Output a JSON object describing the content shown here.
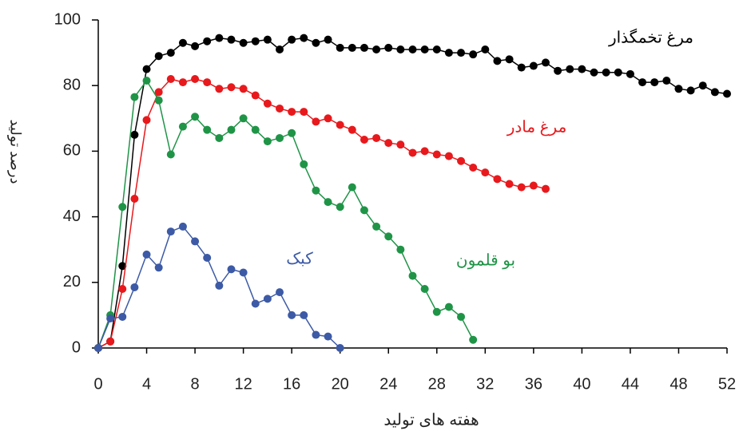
{
  "chart_data": {
    "type": "line",
    "xlabel": "هفته های تولید",
    "ylabel": "درصد تولید",
    "x": [
      0,
      1,
      2,
      3,
      4,
      5,
      6,
      7,
      8,
      9,
      10,
      11,
      12,
      13,
      14,
      15,
      16,
      17,
      18,
      19,
      20,
      21,
      22,
      23,
      24,
      25,
      26,
      27,
      28,
      29,
      30,
      31,
      32,
      33,
      34,
      35,
      36,
      37,
      38,
      39,
      40,
      41,
      42,
      43,
      44,
      45,
      46,
      47,
      48,
      49,
      50,
      51,
      52
    ],
    "xlim": [
      0,
      52
    ],
    "xticks": [
      0,
      4,
      8,
      12,
      16,
      20,
      24,
      28,
      32,
      36,
      40,
      44,
      48,
      52
    ],
    "ylim": [
      0,
      100
    ],
    "yticks": [
      0,
      20,
      40,
      60,
      80,
      100
    ],
    "series": [
      {
        "name": "مرغ تخمگذار",
        "color": "#000000",
        "values": [
          0,
          2,
          25,
          65,
          85,
          89,
          90,
          93,
          92,
          93.5,
          94.5,
          94,
          93,
          93.5,
          94,
          91,
          94,
          94.5,
          93,
          94,
          91.5,
          91.5,
          91.5,
          91,
          91.5,
          91,
          91,
          91,
          91,
          90,
          90,
          89.5,
          91,
          87.5,
          88,
          85.5,
          86,
          87,
          84.5,
          85,
          85,
          84,
          84,
          84,
          83.5,
          81,
          81,
          81.5,
          79,
          78.5,
          80,
          78,
          77.5
        ]
      },
      {
        "name": "مرغ مادر",
        "color": "#e8191c",
        "values": [
          0,
          2,
          18,
          45.5,
          69.5,
          78,
          82,
          81,
          82,
          81,
          79,
          79.5,
          79,
          77,
          74.5,
          73,
          72,
          72,
          69,
          70,
          68,
          66.5,
          63.5,
          64,
          62.5,
          62,
          59.5,
          60,
          59,
          58.5,
          57,
          55,
          53.5,
          51.5,
          50,
          49,
          49.5,
          48.5,
          null,
          null,
          null,
          null,
          null,
          null,
          null,
          null,
          null,
          null,
          null,
          null,
          null,
          null,
          null
        ]
      },
      {
        "name": "بو قلمون",
        "color": "#1f9447",
        "values": [
          0,
          10,
          43,
          76.5,
          81.5,
          75.5,
          59,
          67.5,
          70.5,
          66.5,
          64,
          66.5,
          70,
          66.5,
          63,
          64,
          65.5,
          56,
          48,
          44.5,
          43,
          49,
          42,
          37,
          34,
          30,
          22,
          18,
          11,
          12.5,
          9.5,
          2.5,
          null,
          null,
          null,
          null,
          null,
          null,
          null,
          null,
          null,
          null,
          null,
          null,
          null,
          null,
          null,
          null,
          null,
          null,
          null,
          null,
          null
        ]
      },
      {
        "name": "کبک",
        "color": "#3c5aa6",
        "values": [
          0,
          9,
          9.5,
          18.5,
          28.5,
          24.5,
          35.5,
          37,
          32.5,
          27.5,
          19,
          24,
          23,
          13.5,
          15,
          17,
          10,
          10,
          4,
          3.5,
          0,
          null,
          null,
          null,
          null,
          null,
          null,
          null,
          null,
          null,
          null,
          null,
          null,
          null,
          null,
          null,
          null,
          null,
          null,
          null,
          null,
          null,
          null,
          null,
          null,
          null,
          null,
          null,
          null,
          null,
          null,
          null,
          null
        ]
      }
    ]
  }
}
